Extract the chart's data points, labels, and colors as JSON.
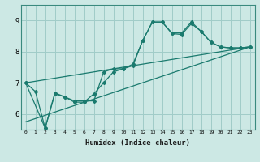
{
  "xlabel": "Humidex (Indice chaleur)",
  "ylabel": "",
  "bg_color": "#cce8e4",
  "grid_color": "#a0ccC8",
  "line_color": "#1a7a6e",
  "xlim": [
    -0.5,
    23.5
  ],
  "ylim": [
    5.5,
    9.5
  ],
  "xticks": [
    0,
    1,
    2,
    3,
    4,
    5,
    6,
    7,
    8,
    9,
    10,
    11,
    12,
    13,
    14,
    15,
    16,
    17,
    18,
    19,
    20,
    21,
    22,
    23
  ],
  "yticks": [
    6,
    7,
    8,
    9
  ],
  "line1_x": [
    0,
    1,
    2,
    3,
    4,
    5,
    6,
    7,
    8,
    9,
    10,
    11,
    12,
    13,
    14,
    15,
    16,
    17,
    18,
    19,
    20,
    21,
    22,
    23
  ],
  "line1_y": [
    7.0,
    6.72,
    5.55,
    6.65,
    6.55,
    6.42,
    6.42,
    6.42,
    7.35,
    7.45,
    7.45,
    7.6,
    8.35,
    8.95,
    8.95,
    8.6,
    8.6,
    8.95,
    8.65,
    8.3,
    8.15,
    8.12,
    8.12,
    8.15
  ],
  "line2_x": [
    0,
    2,
    3,
    4,
    5,
    6,
    7,
    8,
    9,
    10,
    11,
    12,
    13,
    14,
    15,
    16,
    17,
    18,
    19,
    20,
    21,
    22,
    23
  ],
  "line2_y": [
    7.0,
    5.55,
    6.68,
    6.55,
    6.38,
    6.38,
    6.65,
    7.0,
    7.35,
    7.45,
    7.55,
    8.35,
    8.95,
    8.95,
    8.58,
    8.55,
    8.9,
    8.65,
    8.3,
    8.15,
    8.12,
    8.12,
    8.15
  ],
  "line3_x": [
    0,
    23
  ],
  "line3_y": [
    7.0,
    8.15
  ],
  "line4_x": [
    0,
    23
  ],
  "line4_y": [
    5.75,
    8.15
  ]
}
